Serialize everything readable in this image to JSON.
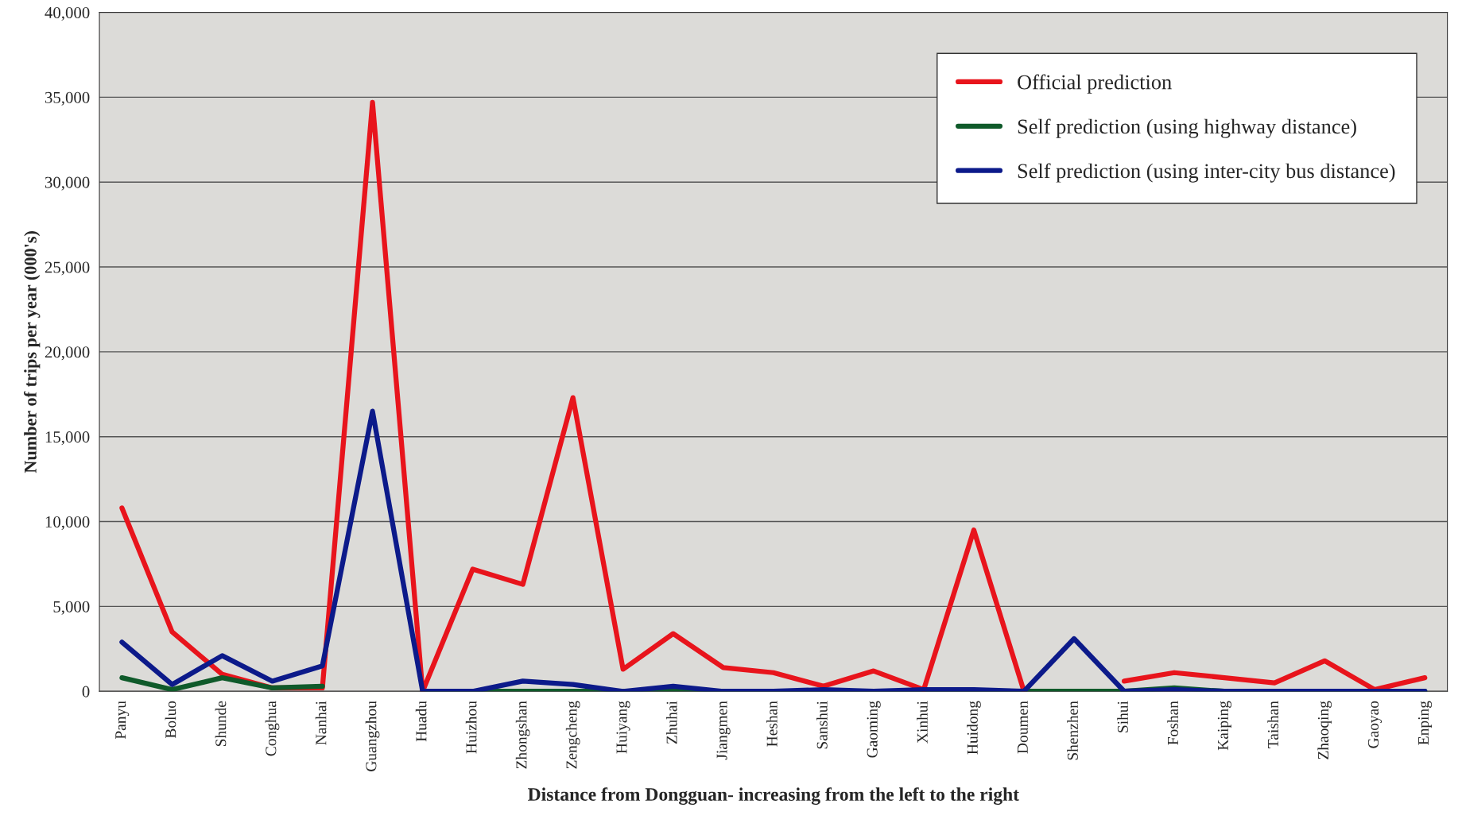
{
  "chart_data": {
    "type": "line",
    "xlabel": "Distance from Dongguan- increasing from the left to the right",
    "ylabel": "Number of trips per year (000's)",
    "categories": [
      "Panyu",
      "Boluo",
      "Shunde",
      "Conghua",
      "Nanhai",
      "Guangzhou",
      "Huadu",
      "Huizhou",
      "Zhongshan",
      "Zengcheng",
      "Huiyang",
      "Zhuhai",
      "Jiangmen",
      "Heshan",
      "Sanshui",
      "Gaoming",
      "Xinhui",
      "Huidong",
      "Doumen",
      "Shenzhen",
      "Sihui",
      "Foshan",
      "Kaiping",
      "Taishan",
      "Zhaoqing",
      "Gaoyao",
      "Enping"
    ],
    "series": [
      {
        "name": "Official prediction",
        "color": "#e8141c",
        "values": [
          10800,
          3500,
          1000,
          200,
          200,
          34700,
          0,
          7200,
          6300,
          17300,
          1300,
          3400,
          1400,
          1100,
          300,
          1200,
          100,
          9500,
          0,
          null,
          600,
          1100,
          800,
          500,
          1800,
          100,
          800
        ]
      },
      {
        "name": "Self prediction (using highway distance)",
        "color": "#0f5a2a",
        "values": [
          800,
          100,
          800,
          200,
          300,
          null,
          0,
          0,
          0,
          0,
          0,
          0,
          0,
          0,
          0,
          0,
          0,
          0,
          0,
          0,
          0,
          200,
          0,
          0,
          0,
          0,
          0
        ]
      },
      {
        "name": "Self prediction (using inter-city bus distance)",
        "color": "#0c1a8a",
        "values": [
          2900,
          400,
          2100,
          600,
          1500,
          16500,
          0,
          0,
          600,
          400,
          0,
          300,
          0,
          0,
          100,
          0,
          100,
          100,
          0,
          3100,
          0,
          100,
          0,
          0,
          0,
          0,
          0
        ]
      }
    ],
    "ylim": [
      0,
      40000
    ],
    "yticks": [
      {
        "value": 0,
        "label": "0"
      },
      {
        "value": 5000,
        "label": "5,000"
      },
      {
        "value": 10000,
        "label": "10,000"
      },
      {
        "value": 15000,
        "label": "15,000"
      },
      {
        "value": 20000,
        "label": "20,000"
      },
      {
        "value": 25000,
        "label": "25,000"
      },
      {
        "value": 30000,
        "label": "30,000"
      },
      {
        "value": 35000,
        "label": "35,000"
      },
      {
        "value": 40000,
        "label": "40,000"
      }
    ],
    "grid": "y",
    "legend": "top right",
    "marker": "none",
    "line_style": "solid"
  }
}
